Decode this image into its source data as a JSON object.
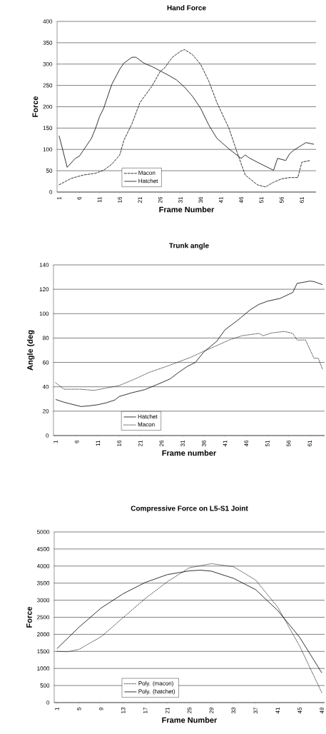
{
  "chart_data": [
    {
      "type": "line",
      "title": "Hand Force",
      "xlabel": "Frame Number",
      "ylabel": "Force",
      "xlim": [
        0.5,
        64.5
      ],
      "xticks": [
        1,
        6,
        11,
        16,
        21,
        26,
        31,
        36,
        41,
        46,
        51,
        56,
        61
      ],
      "ylim": [
        0,
        400
      ],
      "yticks": [
        0,
        50,
        100,
        150,
        200,
        250,
        300,
        350,
        400
      ],
      "grid": "y",
      "legend": "bottom left",
      "series": [
        {
          "name": "Macon",
          "color": "#000000",
          "line_style": "dashed",
          "x": [
            1,
            4,
            7,
            10,
            12,
            14,
            16,
            17,
            19,
            21,
            24,
            26,
            27,
            29,
            31,
            32,
            34,
            36,
            38,
            40,
            43,
            45,
            47,
            50,
            52,
            54,
            56,
            58,
            60,
            61,
            63
          ],
          "values": [
            17,
            32,
            40,
            44,
            51,
            65,
            87,
            121,
            160,
            210,
            249,
            283,
            290,
            316,
            330,
            334,
            322,
            299,
            260,
            210,
            149,
            93,
            40,
            17,
            12,
            23,
            31,
            34,
            34,
            70,
            74
          ]
        },
        {
          "name": "Hatchet",
          "color": "#000000",
          "line_style": "solid",
          "x": [
            1,
            3,
            5,
            6,
            7,
            9,
            10,
            11,
            12,
            14,
            16,
            17,
            19,
            20,
            22,
            24,
            26,
            28,
            30,
            32,
            34,
            36,
            38,
            40,
            43,
            46,
            47,
            48,
            50,
            54,
            55,
            57,
            58,
            59,
            62,
            64
          ],
          "values": [
            132,
            58,
            79,
            84,
            98,
            126,
            149,
            177,
            196,
            252,
            288,
            302,
            316,
            316,
            302,
            294,
            284,
            274,
            263,
            246,
            224,
            196,
            157,
            126,
            101,
            79,
            87,
            80,
            70,
            51,
            79,
            74,
            90,
            98,
            116,
            112
          ]
        }
      ]
    },
    {
      "type": "line",
      "title": "Trunk angle",
      "xlabel": "Frame number",
      "ylabel": "Angle (deg",
      "xlim": [
        0.5,
        64.5
      ],
      "xticks": [
        1,
        6,
        11,
        16,
        21,
        26,
        31,
        36,
        41,
        46,
        51,
        56,
        61
      ],
      "ylim": [
        0,
        140
      ],
      "yticks": [
        0,
        20,
        40,
        60,
        80,
        100,
        120,
        140
      ],
      "grid": "y",
      "legend": "bottom left",
      "series": [
        {
          "name": "Hatchet",
          "color": "#000000",
          "line_style": "solid",
          "x": [
            1,
            3,
            7,
            9,
            11,
            13,
            15,
            16,
            19,
            22,
            25,
            28,
            30,
            32,
            34,
            36,
            39,
            41,
            44,
            47,
            49,
            51,
            54,
            57,
            58,
            61,
            62,
            64
          ],
          "values": [
            29.6,
            27.3,
            23.8,
            24.4,
            25.3,
            26.9,
            29.2,
            32,
            35.1,
            37.6,
            41.9,
            46.4,
            51.7,
            56.5,
            60,
            68.6,
            77.2,
            86.8,
            94.6,
            103.3,
            107.6,
            110.2,
            112.5,
            117.4,
            124.8,
            126.7,
            126.3,
            123.8
          ]
        },
        {
          "name": "Macon",
          "color": "#000000",
          "line_style": "dotted",
          "x": [
            1,
            3,
            7,
            10,
            13,
            16,
            20,
            23,
            27,
            30,
            33,
            36,
            39,
            42,
            45,
            49,
            50,
            52,
            55,
            57,
            58,
            60,
            62,
            63,
            64
          ],
          "values": [
            43.3,
            38,
            38,
            37,
            39,
            41,
            46.8,
            51.7,
            56.5,
            60.4,
            64.3,
            69.2,
            73.7,
            78.4,
            81.9,
            83.8,
            81.9,
            84.2,
            85.4,
            83.8,
            78.4,
            78.4,
            63.4,
            63.4,
            54.6
          ]
        }
      ]
    },
    {
      "type": "line",
      "title": "Compressive Force on L5-S1 Joint",
      "xlabel": "Frame Number",
      "ylabel": "Force",
      "xlim": [
        0.5,
        49.5
      ],
      "xticks": [
        1,
        5,
        9,
        13,
        17,
        21,
        25,
        29,
        33,
        37,
        41,
        45,
        49
      ],
      "ylim": [
        0,
        5000
      ],
      "yticks": [
        0,
        500,
        1000,
        1500,
        2000,
        2500,
        3000,
        3500,
        4000,
        4500,
        5000
      ],
      "grid": "y",
      "legend": "bottom left",
      "series": [
        {
          "name": "Poly. (macon)",
          "color": "#000000",
          "line_style": "dotted",
          "x": [
            1,
            3,
            5,
            9,
            13,
            17,
            21,
            25,
            29,
            33,
            37,
            41,
            45,
            49
          ],
          "values": [
            1500,
            1490,
            1560,
            1930,
            2490,
            3050,
            3540,
            3950,
            4070,
            3980,
            3590,
            2800,
            1650,
            290
          ]
        },
        {
          "name": "Poly. (hatchet)",
          "color": "#000000",
          "line_style": "solid",
          "x": [
            1,
            5,
            9,
            13,
            17,
            21,
            25,
            27,
            29,
            33,
            37,
            41,
            45,
            49
          ],
          "values": [
            1580,
            2210,
            2770,
            3190,
            3520,
            3750,
            3860,
            3880,
            3850,
            3640,
            3310,
            2700,
            1910,
            870
          ]
        }
      ]
    }
  ]
}
